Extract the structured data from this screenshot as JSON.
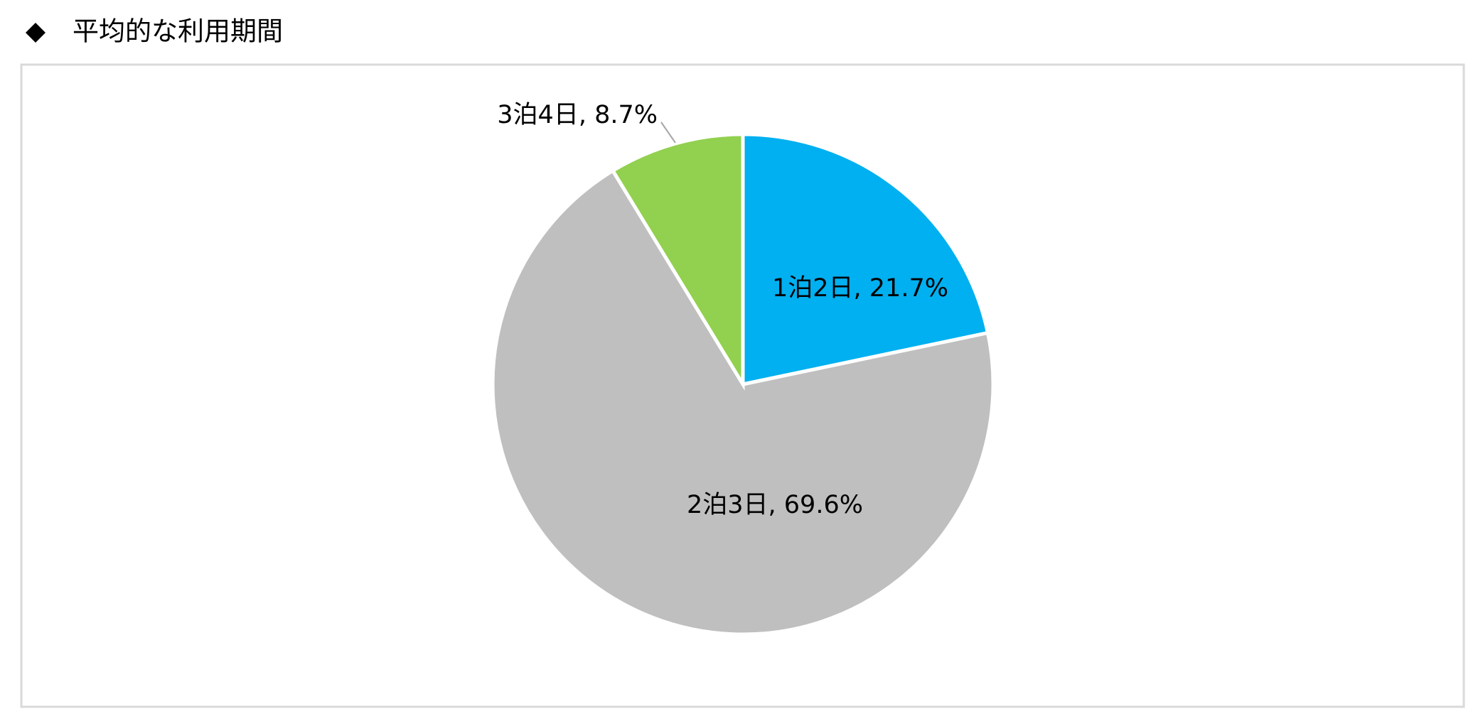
{
  "chart_data": {
    "type": "pie",
    "title": "平均的な利用期間",
    "values": [
      21.7,
      69.6,
      8.7
    ],
    "value_labels": [
      "1泊2日, 21.7%",
      "2泊3日, 69.6%",
      "3泊4日, 8.7%"
    ],
    "colors": [
      "#00b0f0",
      "#bfbfbf",
      "#92d050"
    ]
  }
}
